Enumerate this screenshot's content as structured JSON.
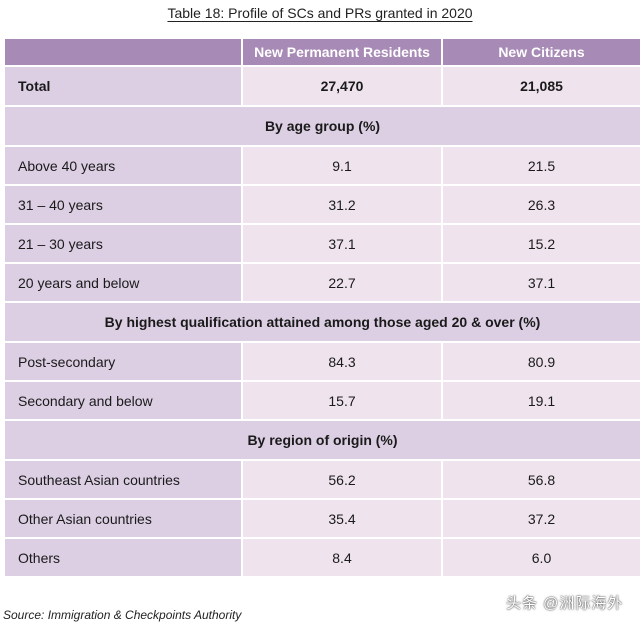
{
  "title": "Table 18: Profile of SCs and PRs granted in 2020",
  "columns": [
    "",
    "New Permanent Residents",
    "New Citizens"
  ],
  "total": {
    "label": "Total",
    "pr": "27,470",
    "citizens": "21,085"
  },
  "sections": [
    {
      "heading": "By age group (%)",
      "rows": [
        {
          "label": "Above 40 years",
          "pr": "9.1",
          "citizens": "21.5"
        },
        {
          "label": "31 – 40 years",
          "pr": "31.2",
          "citizens": "26.3"
        },
        {
          "label": "21 – 30 years",
          "pr": "37.1",
          "citizens": "15.2"
        },
        {
          "label": "20 years and below",
          "pr": "22.7",
          "citizens": "37.1"
        }
      ]
    },
    {
      "heading": "By highest qualification attained among those aged 20 & over (%)",
      "rows": [
        {
          "label": "Post-secondary",
          "pr": "84.3",
          "citizens": "80.9"
        },
        {
          "label": "Secondary and below",
          "pr": "15.7",
          "citizens": "19.1"
        }
      ]
    },
    {
      "heading": "By region of origin (%)",
      "rows": [
        {
          "label": "Southeast Asian countries",
          "pr": "56.2",
          "citizens": "56.8"
        },
        {
          "label": "Other Asian countries",
          "pr": "35.4",
          "citizens": "37.2"
        },
        {
          "label": "Others",
          "pr": "8.4",
          "citizens": "6.0"
        }
      ]
    }
  ],
  "source": "Source: Immigration & Checkpoints Authority",
  "watermark": "头条 @洲际海外",
  "colors": {
    "header": "#a78ab5",
    "label_cell": "#dccfe4",
    "value_cell": "#efe4ee"
  }
}
